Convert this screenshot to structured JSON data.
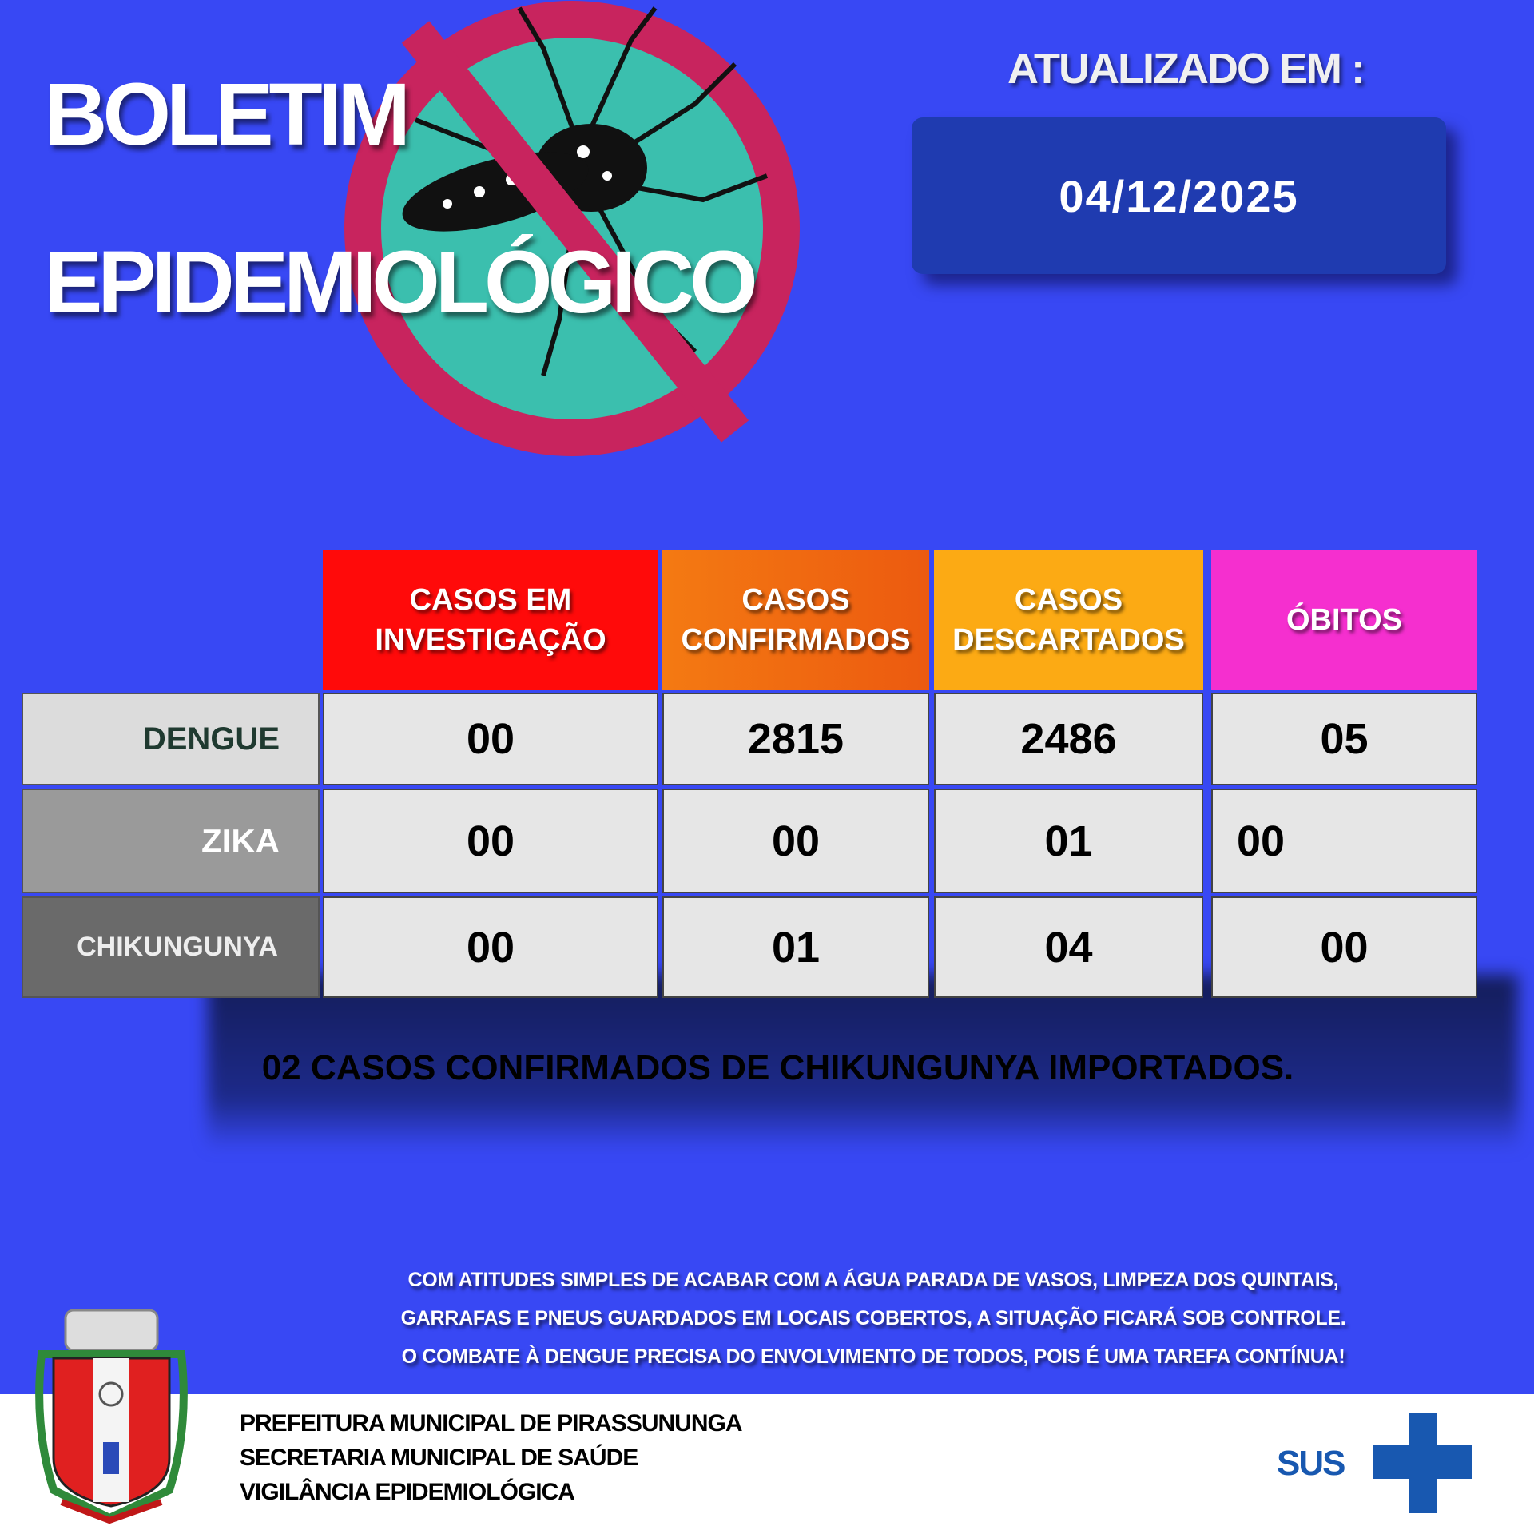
{
  "header": {
    "title_line1": "BOLETIM",
    "title_line2": "EPIDEMIOLÓGICO",
    "updated_label": "ATUALIZADO EM :",
    "updated_date": "04/12/2025"
  },
  "table": {
    "columns": [
      {
        "label": "CASOS EM INVESTIGAÇÃO",
        "color": "#ff0a0a"
      },
      {
        "label": "CASOS CONFIRMADOS",
        "color": "#f46a12"
      },
      {
        "label": "CASOS DESCARTADOS",
        "color": "#fcaa14"
      },
      {
        "label": "ÓBITOS",
        "color": "#f52fcf"
      }
    ],
    "rows": [
      {
        "disease": "DENGUE",
        "values": [
          "00",
          "2815",
          "2486",
          "05"
        ]
      },
      {
        "disease": "ZIKA",
        "values": [
          "00",
          "00",
          "01",
          "00"
        ]
      },
      {
        "disease": "CHIKUNGUNYA",
        "values": [
          "00",
          "01",
          "04",
          "00"
        ]
      }
    ]
  },
  "note": "02 CASOS CONFIRMADOS DE CHIKUNGUNYA IMPORTADOS.",
  "slogan": [
    "COM ATITUDES SIMPLES DE ACABAR COM A ÁGUA PARADA DE VASOS, LIMPEZA DOS QUINTAIS,",
    "GARRAFAS E PNEUS GUARDADOS EM LOCAIS COBERTOS, A SITUAÇÃO FICARÁ SOB CONTROLE.",
    "O COMBATE À DENGUE PRECISA DO ENVOLVIMENTO DE TODOS, POIS É UMA TAREFA CONTÍNUA!"
  ],
  "footer": {
    "lines": [
      "PREFEITURA MUNICIPAL DE PIRASSUNUNGA",
      "SECRETARIA MUNICIPAL DE SAÚDE",
      "VIGILÂNCIA EPIDEMIOLÓGICA"
    ],
    "sus_logo": "SUS"
  },
  "colors": {
    "background": "#3848f4",
    "date_box": "#1f3bb0",
    "sus_blue": "#1858b0"
  }
}
